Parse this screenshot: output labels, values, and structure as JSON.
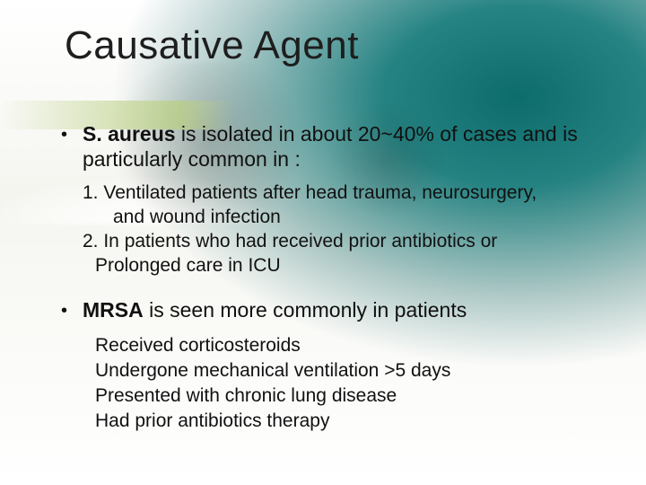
{
  "colors": {
    "teal_dark": "#005a5a",
    "teal_light": "#0a7a7a",
    "accent_band": "#b9cf7d",
    "text": "#111111",
    "title": "#1e1e1e",
    "background": "#ffffff"
  },
  "typography": {
    "title_fontsize_pt": 33,
    "body_fontsize_pt": 17,
    "sub_fontsize_pt": 16,
    "font_family": "Arial"
  },
  "title": "Causative Agent",
  "bullets": [
    {
      "lead_bold": "S. aureus",
      "rest": " is isolated in about 20~40% of cases and is particularly common in :",
      "sublines": [
        "1. Ventilated patients after head trauma, neurosurgery,",
        "and wound infection",
        "2. In patients who had received prior antibiotics or",
        "Prolonged care in ICU"
      ],
      "subline_indents": [
        "",
        "indent",
        "",
        "indent-small"
      ]
    },
    {
      "lead_bold": "MRSA",
      "rest": " is seen more commonly in patients",
      "sublines": [
        "Received corticosteroids",
        "Undergone mechanical ventilation >5 days",
        "Presented with chronic lung disease",
        "Had prior antibiotics therapy"
      ],
      "subline_indents": [
        "",
        "",
        "",
        ""
      ]
    }
  ]
}
